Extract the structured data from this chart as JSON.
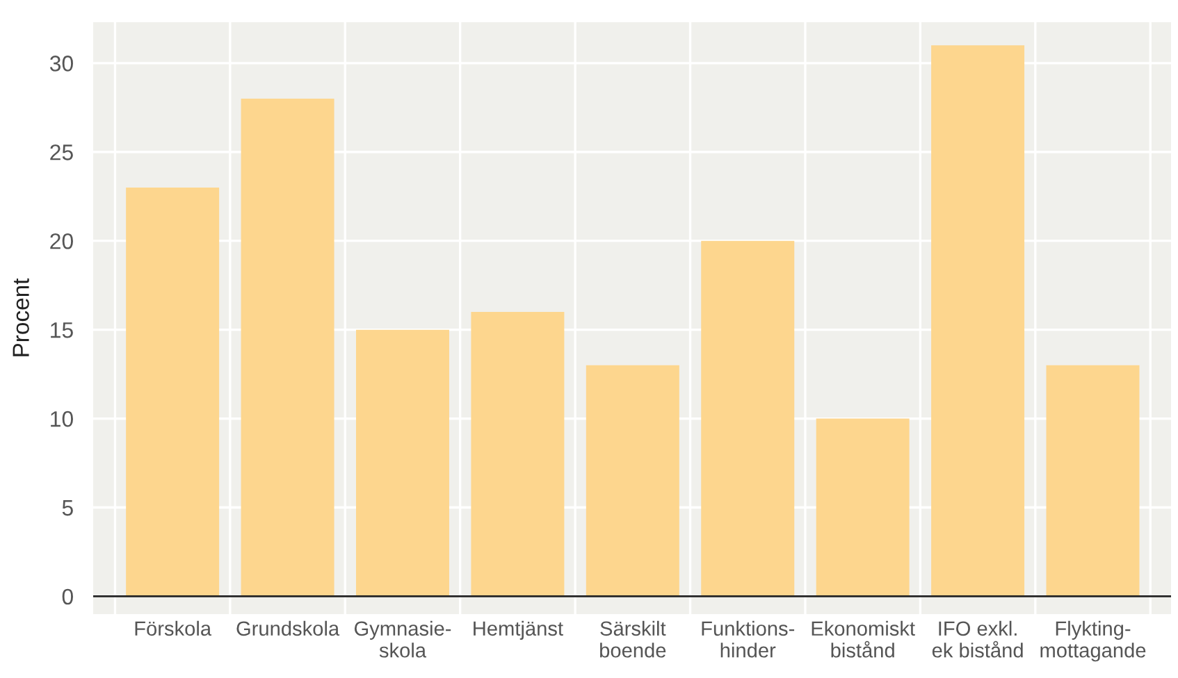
{
  "chart_data": {
    "type": "bar",
    "ylabel": "Procent",
    "categories": [
      "Förskola",
      "Grundskola",
      "Gymnasie-\nskola",
      "Hemtjänst",
      "Särskilt\nboende",
      "Funktions-\nhinder",
      "Ekonomiskt\nbistånd",
      "IFO exkl.\nek bistånd",
      "Flykting-\nmottagande"
    ],
    "values": [
      23,
      28,
      15,
      16,
      13,
      20,
      10,
      31,
      13
    ],
    "color": "#fdd68e",
    "ylim": [
      -1,
      32.3
    ],
    "yticks": [
      0,
      5,
      10,
      15,
      20,
      25,
      30
    ],
    "grid": true,
    "ref_lines": [
      {
        "axis": "y",
        "value": 0,
        "color": "#222222"
      }
    ]
  }
}
